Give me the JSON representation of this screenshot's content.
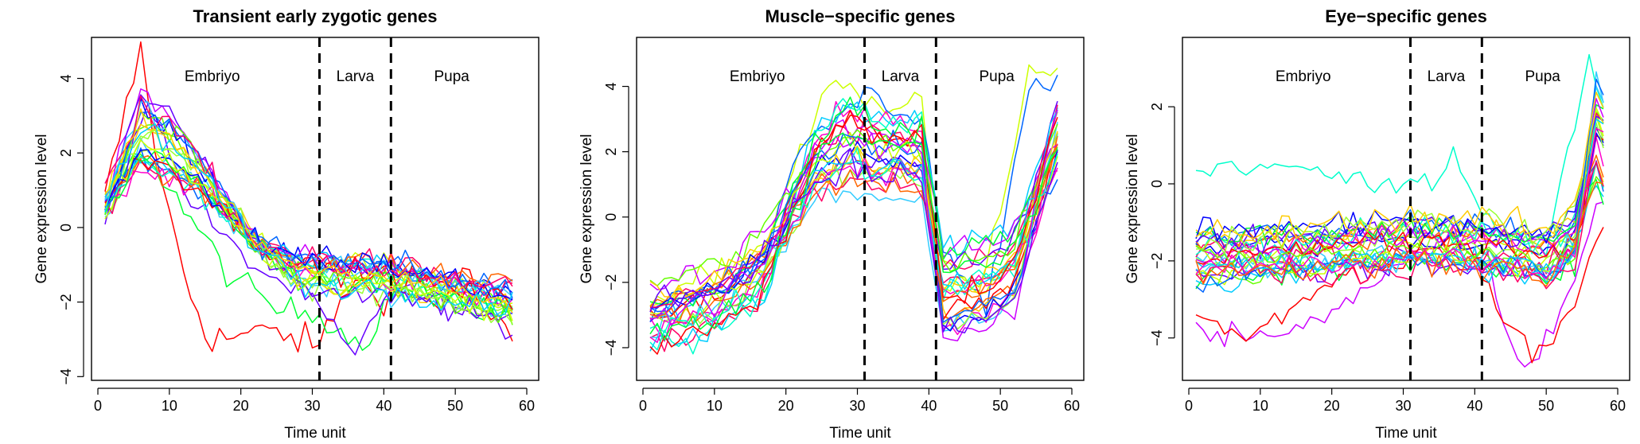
{
  "chart_data": [
    {
      "type": "line",
      "title": "Transient early zygotic genes",
      "xlabel": "Time unit",
      "ylabel": "Gene expression level",
      "xlim": [
        0,
        60
      ],
      "ylim": [
        -4,
        5
      ],
      "xticks": [
        "0",
        "10",
        "20",
        "30",
        "40",
        "50",
        "60"
      ],
      "yticks": [
        "−4",
        "−2",
        "0",
        "2",
        "4"
      ],
      "stage_labels": [
        "Embriyo",
        "Larva",
        "Pupa"
      ],
      "stage_boundaries": [
        31,
        41
      ],
      "series_pattern": "early",
      "series_count": 28
    },
    {
      "type": "line",
      "title": "Muscle−specific genes",
      "xlabel": "Time unit",
      "ylabel": "Gene expression level",
      "xlim": [
        0,
        60
      ],
      "ylim": [
        -5,
        5
      ],
      "xticks": [
        "0",
        "10",
        "20",
        "30",
        "40",
        "50",
        "60"
      ],
      "yticks": [
        "−4",
        "−2",
        "0",
        "2",
        "4"
      ],
      "stage_labels": [
        "Embriyo",
        "Larva",
        "Pupa"
      ],
      "stage_boundaries": [
        31,
        41
      ],
      "series_pattern": "muscle",
      "series_count": 28
    },
    {
      "type": "line",
      "title": "Eye−specific genes",
      "xlabel": "Time unit",
      "ylabel": "Gene expression level",
      "xlim": [
        0,
        60
      ],
      "ylim": [
        -5,
        3.6
      ],
      "xticks": [
        "0",
        "10",
        "20",
        "30",
        "40",
        "50",
        "60"
      ],
      "yticks": [
        "−4",
        "−2",
        "0",
        "2"
      ],
      "stage_labels": [
        "Embriyo",
        "Larva",
        "Pupa"
      ],
      "stage_boundaries": [
        31,
        41
      ],
      "series_pattern": "eye",
      "series_count": 32
    }
  ],
  "colors": {
    "palette": [
      "#ff0000",
      "#ff6600",
      "#ffcc00",
      "#ccff00",
      "#66ff00",
      "#00ff33",
      "#00ffcc",
      "#00ccff",
      "#0066ff",
      "#0000ff",
      "#6600ff",
      "#cc00ff",
      "#ff00cc",
      "#ff0066",
      "#99ff33",
      "#33ccff"
    ],
    "axis": "#000000",
    "background": "#ffffff"
  }
}
